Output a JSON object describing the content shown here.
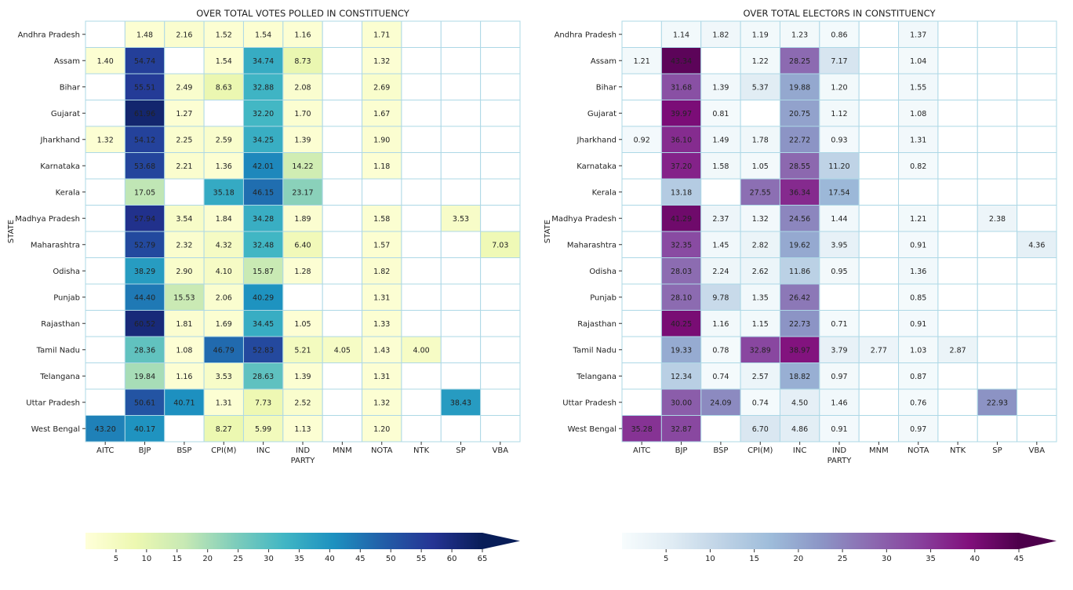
{
  "chart_data": [
    {
      "type": "heatmap",
      "title": "OVER TOTAL VOTES POLLED IN CONSTITUENCY",
      "xlabel": "PARTY",
      "ylabel": "STATE",
      "colormap": "YlGnBu",
      "color_range": [
        0,
        65
      ],
      "colorbar_ticks": [
        "5",
        "10",
        "15",
        "20",
        "25",
        "30",
        "35",
        "40",
        "45",
        "50",
        "55",
        "60",
        "65"
      ],
      "x": [
        "AITC",
        "BJP",
        "BSP",
        "CPI(M)",
        "INC",
        "IND",
        "MNM",
        "NOTA",
        "NTK",
        "SP",
        "VBA"
      ],
      "y": [
        "Andhra Pradesh",
        "Assam",
        "Bihar",
        "Gujarat",
        "Jharkhand",
        "Karnataka",
        "Kerala",
        "Madhya Pradesh",
        "Maharashtra",
        "Odisha",
        "Punjab",
        "Rajasthan",
        "Tamil Nadu",
        "Telangana",
        "Uttar Pradesh",
        "West Bengal"
      ],
      "values": [
        [
          null,
          "1.48",
          "2.16",
          "1.52",
          "1.54",
          "1.16",
          null,
          "1.71",
          null,
          null,
          null
        ],
        [
          "1.40",
          "54.74",
          null,
          "1.54",
          "34.74",
          "8.73",
          null,
          "1.32",
          null,
          null,
          null
        ],
        [
          null,
          "55.51",
          "2.49",
          "8.63",
          "32.88",
          "2.08",
          null,
          "2.69",
          null,
          null,
          null
        ],
        [
          null,
          "61.96",
          "1.27",
          null,
          "32.20",
          "1.70",
          null,
          "1.67",
          null,
          null,
          null
        ],
        [
          "1.32",
          "54.12",
          "2.25",
          "2.59",
          "34.25",
          "1.39",
          null,
          "1.90",
          null,
          null,
          null
        ],
        [
          null,
          "53.68",
          "2.21",
          "1.36",
          "42.01",
          "14.22",
          null,
          "1.18",
          null,
          null,
          null
        ],
        [
          null,
          "17.05",
          null,
          "35.18",
          "46.15",
          "23.17",
          null,
          null,
          null,
          null,
          null
        ],
        [
          null,
          "57.94",
          "3.54",
          "1.84",
          "34.28",
          "1.89",
          null,
          "1.58",
          null,
          "3.53",
          null
        ],
        [
          null,
          "52.79",
          "2.32",
          "4.32",
          "32.48",
          "6.40",
          null,
          "1.57",
          null,
          null,
          "7.03"
        ],
        [
          null,
          "38.29",
          "2.90",
          "4.10",
          "15.87",
          "1.28",
          null,
          "1.82",
          null,
          null,
          null
        ],
        [
          null,
          "44.40",
          "15.53",
          "2.06",
          "40.29",
          null,
          null,
          "1.31",
          null,
          null,
          null
        ],
        [
          null,
          "60.52",
          "1.81",
          "1.69",
          "34.45",
          "1.05",
          null,
          "1.33",
          null,
          null,
          null
        ],
        [
          null,
          "28.36",
          "1.08",
          "46.79",
          "52.83",
          "5.21",
          "4.05",
          "1.43",
          "4.00",
          null,
          null
        ],
        [
          null,
          "19.84",
          "1.16",
          "3.53",
          "28.63",
          "1.39",
          null,
          "1.31",
          null,
          null,
          null
        ],
        [
          null,
          "50.61",
          "40.71",
          "1.31",
          "7.73",
          "2.52",
          null,
          "1.32",
          null,
          "38.43",
          null
        ],
        [
          "43.20",
          "40.17",
          null,
          "8.27",
          "5.99",
          "1.13",
          null,
          "1.20",
          null,
          null,
          null
        ]
      ]
    },
    {
      "type": "heatmap",
      "title": "OVER TOTAL ELECTORS IN CONSTITUENCY",
      "xlabel": "PARTY",
      "ylabel": "STATE",
      "colormap": "BuPu",
      "color_range": [
        0,
        45
      ],
      "colorbar_ticks": [
        "5",
        "10",
        "15",
        "20",
        "25",
        "30",
        "35",
        "40",
        "45"
      ],
      "x": [
        "AITC",
        "BJP",
        "BSP",
        "CPI(M)",
        "INC",
        "IND",
        "MNM",
        "NOTA",
        "NTK",
        "SP",
        "VBA"
      ],
      "y": [
        "Andhra Pradesh",
        "Assam",
        "Bihar",
        "Gujarat",
        "Jharkhand",
        "Karnataka",
        "Kerala",
        "Madhya Pradesh",
        "Maharashtra",
        "Odisha",
        "Punjab",
        "Rajasthan",
        "Tamil Nadu",
        "Telangana",
        "Uttar Pradesh",
        "West Bengal"
      ],
      "values": [
        [
          null,
          "1.14",
          "1.82",
          "1.19",
          "1.23",
          "0.86",
          null,
          "1.37",
          null,
          null,
          null
        ],
        [
          "1.21",
          "43.34",
          null,
          "1.22",
          "28.25",
          "7.17",
          null,
          "1.04",
          null,
          null,
          null
        ],
        [
          null,
          "31.68",
          "1.39",
          "5.37",
          "19.88",
          "1.20",
          null,
          "1.55",
          null,
          null,
          null
        ],
        [
          null,
          "39.97",
          "0.81",
          null,
          "20.75",
          "1.12",
          null,
          "1.08",
          null,
          null,
          null
        ],
        [
          "0.92",
          "36.10",
          "1.49",
          "1.78",
          "22.72",
          "0.93",
          null,
          "1.31",
          null,
          null,
          null
        ],
        [
          null,
          "37.20",
          "1.58",
          "1.05",
          "28.55",
          "11.20",
          null,
          "0.82",
          null,
          null,
          null
        ],
        [
          null,
          "13.18",
          null,
          "27.55",
          "36.34",
          "17.54",
          null,
          null,
          null,
          null,
          null
        ],
        [
          null,
          "41.29",
          "2.37",
          "1.32",
          "24.56",
          "1.44",
          null,
          "1.21",
          null,
          "2.38",
          null
        ],
        [
          null,
          "32.35",
          "1.45",
          "2.82",
          "19.62",
          "3.95",
          null,
          "0.91",
          null,
          null,
          "4.36"
        ],
        [
          null,
          "28.03",
          "2.24",
          "2.62",
          "11.86",
          "0.95",
          null,
          "1.36",
          null,
          null,
          null
        ],
        [
          null,
          "28.10",
          "9.78",
          "1.35",
          "26.42",
          null,
          null,
          "0.85",
          null,
          null,
          null
        ],
        [
          null,
          "40.25",
          "1.16",
          "1.15",
          "22.73",
          "0.71",
          null,
          "0.91",
          null,
          null,
          null
        ],
        [
          null,
          "19.33",
          "0.78",
          "32.89",
          "38.97",
          "3.79",
          "2.77",
          "1.03",
          "2.87",
          null,
          null
        ],
        [
          null,
          "12.34",
          "0.74",
          "2.57",
          "18.82",
          "0.97",
          null,
          "0.87",
          null,
          null,
          null
        ],
        [
          null,
          "30.00",
          "24.09",
          "0.74",
          "4.50",
          "1.46",
          null,
          "0.76",
          null,
          "22.93",
          null
        ],
        [
          "35.28",
          "32.87",
          null,
          "6.70",
          "4.86",
          "0.91",
          null,
          "0.97",
          null,
          null,
          null
        ]
      ]
    }
  ]
}
